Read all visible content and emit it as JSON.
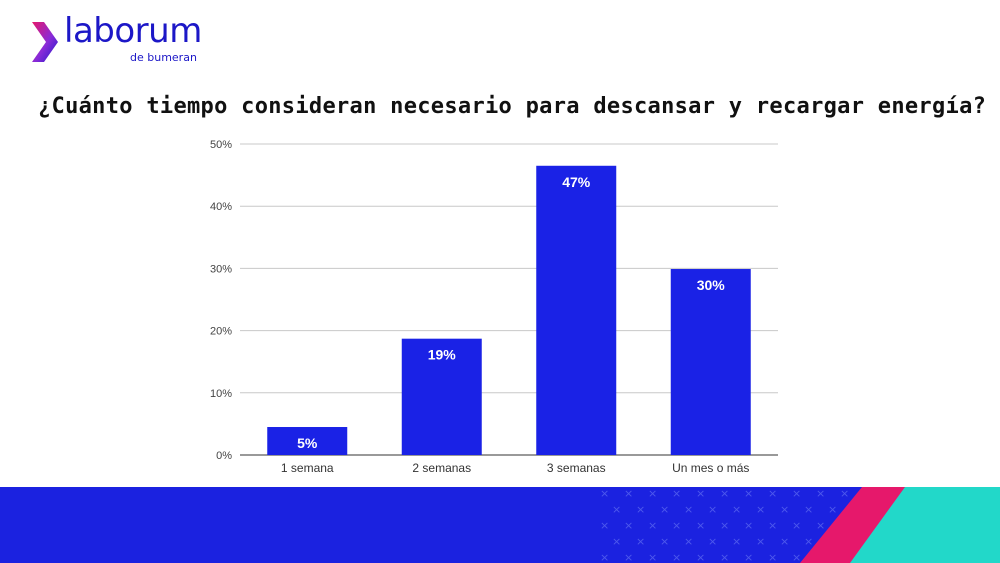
{
  "brand": {
    "name": "laborum",
    "subtitle": "de bumeran",
    "colors": {
      "primary": "#1c17c7",
      "accent_pink": "#e6186b",
      "accent_teal": "#22d8c9",
      "bar": "#1a22e6",
      "footer": "#1b22e0"
    }
  },
  "chart_data": {
    "type": "bar",
    "title": "¿Cuánto tiempo consideran necesario para descansar y recargar energía?",
    "categories": [
      "1 semana",
      "2 semanas",
      "3 semanas",
      "Un mes o más"
    ],
    "values": [
      4.5,
      18.7,
      46.5,
      29.9
    ],
    "data_labels": [
      "5%",
      "19%",
      "47%",
      "30%"
    ],
    "yticks": [
      0,
      10,
      20,
      30,
      40,
      50
    ],
    "ytick_labels": [
      "0%",
      "10%",
      "20%",
      "30%",
      "40%",
      "50%"
    ],
    "ylim": [
      0,
      50
    ],
    "xlabel": "",
    "ylabel": "",
    "grid": true
  }
}
